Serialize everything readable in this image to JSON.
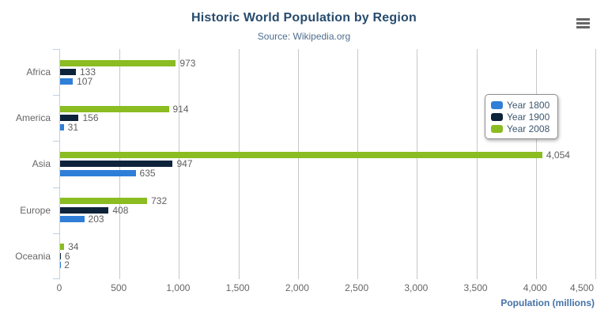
{
  "chart_data": {
    "type": "bar",
    "orientation": "horizontal",
    "title": "Historic World Population by Region",
    "subtitle": "Source: Wikipedia.org",
    "categories": [
      "Africa",
      "America",
      "Asia",
      "Europe",
      "Oceania"
    ],
    "series": [
      {
        "name": "Year 1800",
        "color": "#2f7ed8",
        "values": [
          107,
          31,
          635,
          203,
          2
        ]
      },
      {
        "name": "Year 1900",
        "color": "#0d233a",
        "values": [
          133,
          156,
          947,
          408,
          6
        ]
      },
      {
        "name": "Year 2008",
        "color": "#8bbc21",
        "values": [
          973,
          914,
          4054,
          732,
          34
        ]
      }
    ],
    "bar_order_top_to_bottom": [
      "Year 2008",
      "Year 1900",
      "Year 1800"
    ],
    "xlabel": "Population (millions)",
    "xlim": [
      0,
      4500
    ],
    "xticks": [
      0,
      500,
      1000,
      1500,
      2000,
      2500,
      3000,
      3500,
      4000,
      4500
    ],
    "grid": true,
    "data_labels": true,
    "legend_position": "right-inside"
  },
  "export_menu": {
    "icon": "hamburger-icon"
  },
  "colors": {
    "title": "#274b6d",
    "subtitle": "#4d6e8e",
    "axis_title": "#4572a7",
    "axis_line": "#c0d0e0",
    "gridline": "#c8c8c8",
    "tick_label": "#666666",
    "data_label": "#606060",
    "legend_text": "#3e576f",
    "legend_border": "#909090",
    "menu_icon": "#666666"
  }
}
